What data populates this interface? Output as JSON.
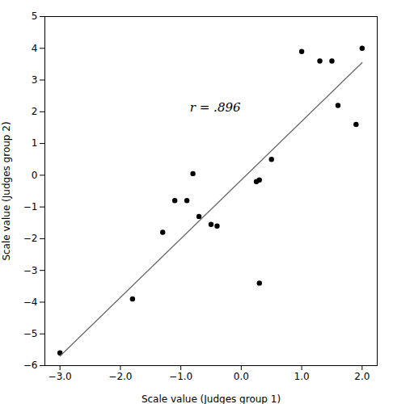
{
  "chart_data": {
    "type": "scatter",
    "xlabel": "Scale value (Judges group 1)",
    "ylabel": "Scale value (Judges group 2)",
    "series": [
      {
        "type": "scatter",
        "color": "black",
        "marker": "circle",
        "x": [
          -3.0,
          -1.8,
          -1.3,
          -1.1,
          -0.9,
          -0.8,
          -0.7,
          -0.5,
          -0.4,
          0.25,
          0.3,
          0.5,
          1.0,
          1.3,
          1.5,
          1.6,
          1.9,
          2.0,
          0.3
        ],
        "values": [
          -5.6,
          -3.9,
          -1.8,
          -0.8,
          -0.8,
          0.05,
          -1.3,
          -1.55,
          -1.6,
          -0.2,
          -0.15,
          0.5,
          3.9,
          3.6,
          3.6,
          2.2,
          1.6,
          4.0,
          -3.4
        ]
      },
      {
        "type": "line",
        "color": "#666666",
        "line_style": "solid",
        "x": [
          -3.0,
          2.0
        ],
        "values": [
          -5.7,
          3.55
        ]
      }
    ],
    "annotations": [
      {
        "text": "r = .896",
        "x": -0.85,
        "y": 2.0
      }
    ],
    "xlim": [
      -3.25,
      2.25
    ],
    "ylim": [
      -6.0,
      5.0
    ],
    "xticks": [
      -3,
      -2,
      -1,
      0,
      1,
      2
    ],
    "yticks": [
      -6,
      -5,
      -4,
      -3,
      -2,
      -1,
      0,
      1,
      2,
      3,
      4,
      5
    ],
    "grid": false
  }
}
